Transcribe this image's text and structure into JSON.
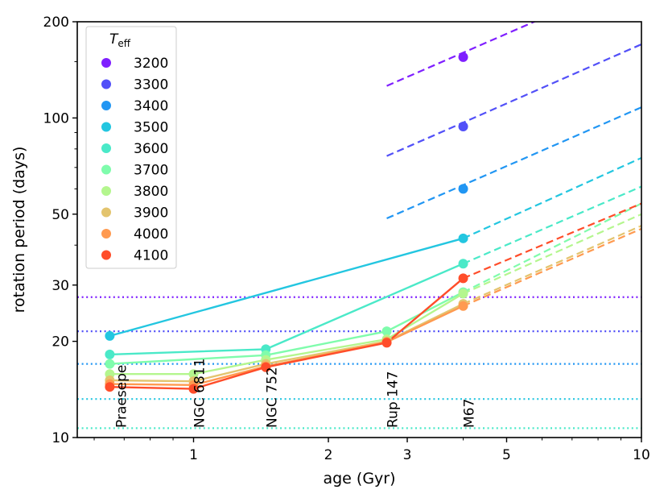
{
  "chart_data": {
    "type": "line",
    "xlabel": "age (Gyr)",
    "ylabel": "rotation period (days)",
    "xscale": "log",
    "yscale": "log",
    "xlim": [
      0.55,
      10
    ],
    "ylim": [
      10,
      200
    ],
    "xticks": [
      {
        "value": 1,
        "label": "1"
      },
      {
        "value": 2,
        "label": "2"
      },
      {
        "value": 3,
        "label": "3"
      },
      {
        "value": 5,
        "label": "5"
      },
      {
        "value": 10,
        "label": "10"
      }
    ],
    "yticks": [
      {
        "value": 10,
        "label": "10"
      },
      {
        "value": 20,
        "label": "20"
      },
      {
        "value": 30,
        "label": "30"
      },
      {
        "value": 50,
        "label": "50"
      },
      {
        "value": 100,
        "label": "100"
      },
      {
        "value": 200,
        "label": "200"
      }
    ],
    "legend": {
      "title_main": "T",
      "title_sub": "eff",
      "placement": "upper-left"
    },
    "clusters": [
      {
        "name": "Praesepe",
        "age": 0.67
      },
      {
        "name": "NGC 6811",
        "age": 1.0
      },
      {
        "name": "NGC 752",
        "age": 1.45
      },
      {
        "name": "Rup 147",
        "age": 2.7
      },
      {
        "name": "M67",
        "age": 4.0
      }
    ],
    "series": [
      {
        "name": "3200",
        "color": "#7f1fff",
        "points": [
          {
            "x": 4.0,
            "y": 155
          }
        ],
        "dashed": [
          [
            2.7,
            126
          ],
          [
            6.0,
            205
          ]
        ],
        "dotted_y": 27.5
      },
      {
        "name": "3300",
        "color": "#5250f8",
        "points": [
          {
            "x": 4.0,
            "y": 94
          }
        ],
        "dashed": [
          [
            2.7,
            76
          ],
          [
            10.0,
            170
          ]
        ],
        "dotted_y": 21.5
      },
      {
        "name": "3400",
        "color": "#2196f3",
        "points": [
          {
            "x": 4.0,
            "y": 60
          }
        ],
        "dashed": [
          [
            2.7,
            48.5
          ],
          [
            10.0,
            108
          ]
        ],
        "dotted_y": 17.0
      },
      {
        "name": "3500",
        "color": "#23c6e0",
        "points": [
          {
            "x": 0.65,
            "y": 20.8
          },
          {
            "x": 4.0,
            "y": 42
          }
        ],
        "dashed": [
          [
            4.0,
            42
          ],
          [
            10.0,
            75
          ]
        ],
        "dotted_y": 13.2
      },
      {
        "name": "3600",
        "color": "#4ae9c8",
        "points": [
          {
            "x": 0.65,
            "y": 18.2
          },
          {
            "x": 1.45,
            "y": 18.9
          },
          {
            "x": 4.0,
            "y": 35
          }
        ],
        "dashed": [
          [
            4.0,
            35
          ],
          [
            10.0,
            61
          ]
        ],
        "dotted_y": 10.7
      },
      {
        "name": "3700",
        "color": "#7ffcac",
        "points": [
          {
            "x": 0.65,
            "y": 17.0
          },
          {
            "x": 1.45,
            "y": 18.1
          },
          {
            "x": 2.7,
            "y": 21.5
          },
          {
            "x": 4.0,
            "y": 28.5
          }
        ],
        "dashed": [
          [
            4.0,
            28.5
          ],
          [
            10.0,
            54
          ]
        ],
        "dotted_y": null
      },
      {
        "name": "3800",
        "color": "#b4f68e",
        "points": [
          {
            "x": 0.65,
            "y": 15.8
          },
          {
            "x": 1.0,
            "y": 15.8
          },
          {
            "x": 1.45,
            "y": 17.5
          },
          {
            "x": 2.7,
            "y": 20.3
          },
          {
            "x": 4.0,
            "y": 28.2
          }
        ],
        "dashed": [
          [
            4.0,
            28.2
          ],
          [
            10.0,
            50
          ]
        ],
        "dotted_y": null
      },
      {
        "name": "3900",
        "color": "#e3c46e",
        "points": [
          {
            "x": 0.65,
            "y": 15.1
          },
          {
            "x": 1.0,
            "y": 15.0
          },
          {
            "x": 1.45,
            "y": 17.0
          },
          {
            "x": 2.7,
            "y": 20.0
          },
          {
            "x": 4.0,
            "y": 26.2
          }
        ],
        "dashed": [
          [
            4.0,
            26.2
          ],
          [
            10.0,
            46
          ]
        ],
        "dotted_y": null
      },
      {
        "name": "4000",
        "color": "#ff9a50",
        "points": [
          {
            "x": 0.65,
            "y": 14.7
          },
          {
            "x": 1.0,
            "y": 14.6
          },
          {
            "x": 1.45,
            "y": 16.7
          },
          {
            "x": 2.7,
            "y": 19.9
          },
          {
            "x": 4.0,
            "y": 25.8
          }
        ],
        "dashed": [
          [
            4.0,
            25.8
          ],
          [
            10.0,
            45
          ]
        ],
        "dotted_y": null
      },
      {
        "name": "4100",
        "color": "#ff4d2a",
        "points": [
          {
            "x": 0.65,
            "y": 14.4
          },
          {
            "x": 1.0,
            "y": 14.2
          },
          {
            "x": 1.45,
            "y": 16.6
          },
          {
            "x": 2.7,
            "y": 19.8
          },
          {
            "x": 4.0,
            "y": 31.5
          }
        ],
        "dashed": [
          [
            4.0,
            31.5
          ],
          [
            10.0,
            54
          ]
        ],
        "dotted_y": null
      }
    ]
  }
}
